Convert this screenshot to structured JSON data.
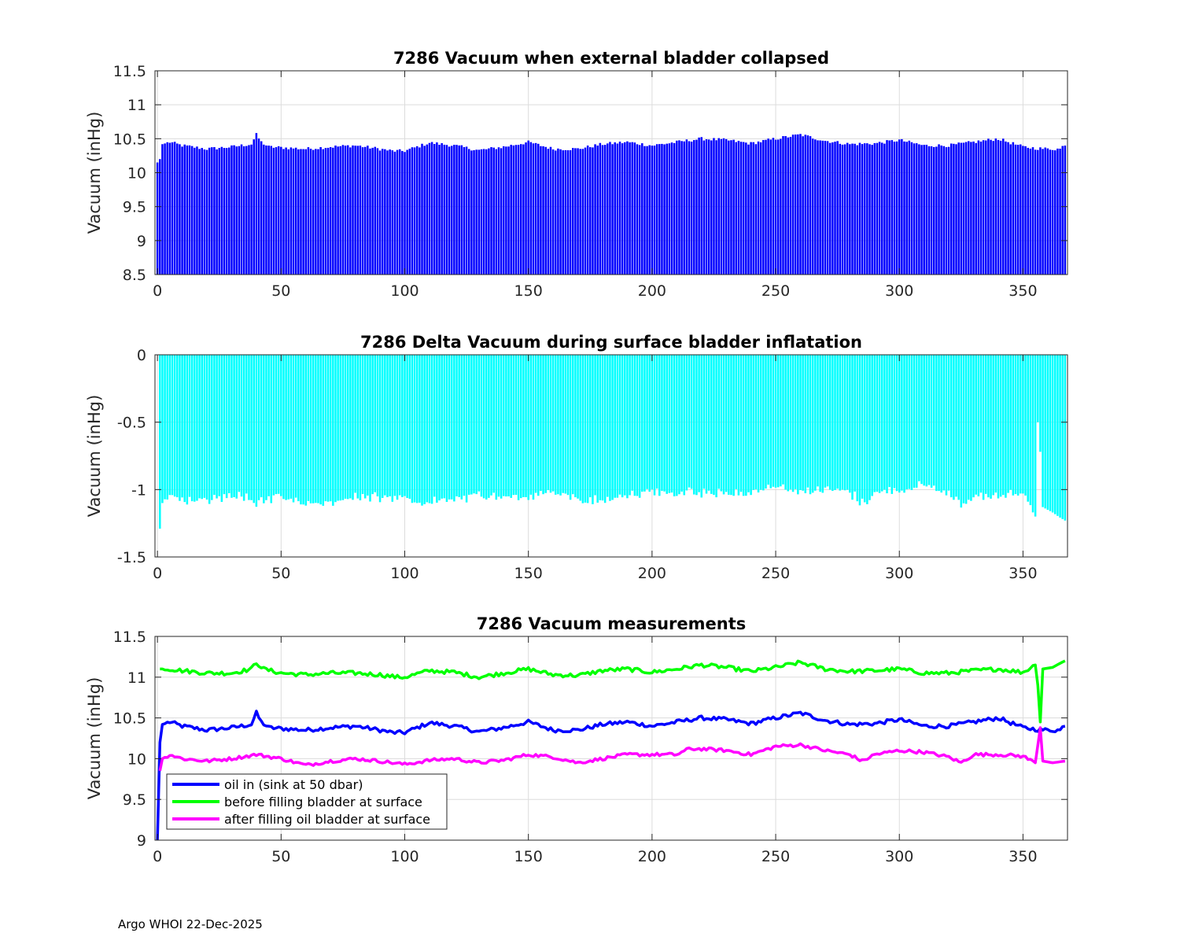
{
  "footer": "Argo WHOI 22-Dec-2025",
  "chart_data": [
    {
      "type": "bar",
      "title": "7286 Vacuum when external bladder collapsed",
      "xlabel": "",
      "ylabel": "Vacuum (inHg)",
      "xlim": [
        -1,
        368
      ],
      "ylim": [
        8.5,
        11.5
      ],
      "xticks": [
        0,
        50,
        100,
        150,
        200,
        250,
        300,
        350
      ],
      "yticks": [
        8.5,
        9,
        9.5,
        10,
        10.5,
        11,
        11.5
      ],
      "ytick_labels": [
        "8.5",
        "9",
        "9.5",
        "10",
        "10.5",
        "11",
        "11.5"
      ],
      "grid": true,
      "color": "#0000ff",
      "series_ref": "oil_in",
      "cycles": "0-367 (one bar per profile cycle)"
    },
    {
      "type": "bar",
      "title": "7286 Delta Vacuum during surface bladder inflatation",
      "xlabel": "",
      "ylabel": "Vacuum (inHg)",
      "xlim": [
        -1,
        368
      ],
      "ylim": [
        -1.5,
        0
      ],
      "xticks": [
        0,
        50,
        100,
        150,
        200,
        250,
        300,
        350
      ],
      "yticks": [
        -1.5,
        -1,
        -0.5,
        0
      ],
      "ytick_labels": [
        "-1.5",
        "-1",
        "-0.5",
        "0"
      ],
      "grid": true,
      "color": "#00ffff",
      "series_ref": "delta",
      "cycles": "0-367 (one bar per profile cycle)"
    },
    {
      "type": "line",
      "title": "7286 Vacuum measurements",
      "xlabel": "",
      "ylabel": "Vacuum (inHg)",
      "xlim": [
        -1,
        368
      ],
      "ylim": [
        9,
        11.5
      ],
      "xticks": [
        0,
        50,
        100,
        150,
        200,
        250,
        300,
        350
      ],
      "yticks": [
        9,
        9.5,
        10,
        10.5,
        11,
        11.5
      ],
      "ytick_labels": [
        "9",
        "9.5",
        "10",
        "10.5",
        "11",
        "11.5"
      ],
      "grid": true,
      "legend_position": "bottom-left",
      "series": [
        {
          "name": "oil in (sink at 50 dbar)",
          "color": "#0000ff",
          "anchors": [
            [
              0,
              9.0
            ],
            [
              1,
              10.2
            ],
            [
              2,
              10.42
            ],
            [
              5,
              10.45
            ],
            [
              10,
              10.4
            ],
            [
              20,
              10.35
            ],
            [
              30,
              10.38
            ],
            [
              38,
              10.42
            ],
            [
              40,
              10.56
            ],
            [
              42,
              10.45
            ],
            [
              45,
              10.38
            ],
            [
              60,
              10.35
            ],
            [
              70,
              10.38
            ],
            [
              80,
              10.4
            ],
            [
              90,
              10.35
            ],
            [
              95,
              10.32
            ],
            [
              100,
              10.32
            ],
            [
              105,
              10.38
            ],
            [
              110,
              10.44
            ],
            [
              120,
              10.4
            ],
            [
              130,
              10.33
            ],
            [
              140,
              10.38
            ],
            [
              150,
              10.45
            ],
            [
              160,
              10.35
            ],
            [
              170,
              10.35
            ],
            [
              180,
              10.42
            ],
            [
              190,
              10.45
            ],
            [
              200,
              10.4
            ],
            [
              210,
              10.45
            ],
            [
              220,
              10.5
            ],
            [
              230,
              10.48
            ],
            [
              240,
              10.43
            ],
            [
              250,
              10.5
            ],
            [
              260,
              10.56
            ],
            [
              270,
              10.47
            ],
            [
              280,
              10.42
            ],
            [
              290,
              10.43
            ],
            [
              300,
              10.48
            ],
            [
              310,
              10.4
            ],
            [
              320,
              10.4
            ],
            [
              330,
              10.45
            ],
            [
              340,
              10.5
            ],
            [
              350,
              10.38
            ],
            [
              355,
              10.36
            ],
            [
              360,
              10.35
            ],
            [
              365,
              10.35
            ],
            [
              367,
              10.42
            ]
          ]
        },
        {
          "name": "before filling bladder at surface",
          "color": "#00ff00",
          "anchors": [
            [
              1,
              11.1
            ],
            [
              5,
              11.1
            ],
            [
              10,
              11.08
            ],
            [
              20,
              11.05
            ],
            [
              30,
              11.05
            ],
            [
              38,
              11.1
            ],
            [
              40,
              11.18
            ],
            [
              43,
              11.1
            ],
            [
              50,
              11.05
            ],
            [
              60,
              11.03
            ],
            [
              70,
              11.05
            ],
            [
              80,
              11.05
            ],
            [
              90,
              11.03
            ],
            [
              97,
              11.0
            ],
            [
              100,
              11.0
            ],
            [
              110,
              11.08
            ],
            [
              120,
              11.06
            ],
            [
              130,
              11.0
            ],
            [
              140,
              11.05
            ],
            [
              150,
              11.1
            ],
            [
              160,
              11.03
            ],
            [
              170,
              11.02
            ],
            [
              180,
              11.08
            ],
            [
              190,
              11.1
            ],
            [
              200,
              11.06
            ],
            [
              210,
              11.1
            ],
            [
              220,
              11.15
            ],
            [
              230,
              11.12
            ],
            [
              240,
              11.07
            ],
            [
              250,
              11.12
            ],
            [
              260,
              11.18
            ],
            [
              270,
              11.1
            ],
            [
              280,
              11.07
            ],
            [
              290,
              11.08
            ],
            [
              300,
              11.1
            ],
            [
              310,
              11.05
            ],
            [
              320,
              11.05
            ],
            [
              330,
              11.08
            ],
            [
              340,
              11.1
            ],
            [
              350,
              11.06
            ],
            [
              355,
              11.15
            ],
            [
              356,
              10.9
            ],
            [
              357,
              10.45
            ],
            [
              358,
              11.1
            ],
            [
              362,
              11.12
            ],
            [
              365,
              11.17
            ],
            [
              367,
              11.2
            ]
          ]
        },
        {
          "name": "after filling oil bladder at surface",
          "color": "#ff00ff",
          "anchors": [
            [
              1,
              9.85
            ],
            [
              2,
              10.0
            ],
            [
              5,
              10.05
            ],
            [
              10,
              10.0
            ],
            [
              20,
              9.97
            ],
            [
              30,
              10.0
            ],
            [
              40,
              10.05
            ],
            [
              50,
              10.0
            ],
            [
              60,
              9.92
            ],
            [
              70,
              9.97
            ],
            [
              80,
              10.0
            ],
            [
              90,
              9.97
            ],
            [
              100,
              9.93
            ],
            [
              110,
              9.98
            ],
            [
              120,
              10.0
            ],
            [
              130,
              9.95
            ],
            [
              140,
              9.98
            ],
            [
              150,
              10.05
            ],
            [
              160,
              10.02
            ],
            [
              170,
              9.95
            ],
            [
              180,
              10.0
            ],
            [
              190,
              10.05
            ],
            [
              200,
              10.05
            ],
            [
              210,
              10.05
            ],
            [
              215,
              10.12
            ],
            [
              220,
              10.12
            ],
            [
              230,
              10.1
            ],
            [
              240,
              10.05
            ],
            [
              250,
              10.15
            ],
            [
              260,
              10.17
            ],
            [
              270,
              10.1
            ],
            [
              280,
              10.05
            ],
            [
              285,
              9.97
            ],
            [
              290,
              10.05
            ],
            [
              300,
              10.1
            ],
            [
              310,
              10.08
            ],
            [
              320,
              10.02
            ],
            [
              325,
              9.95
            ],
            [
              330,
              10.05
            ],
            [
              340,
              10.05
            ],
            [
              350,
              10.03
            ],
            [
              355,
              9.95
            ],
            [
              357,
              10.38
            ],
            [
              358,
              9.97
            ],
            [
              362,
              9.95
            ],
            [
              367,
              9.97
            ]
          ]
        }
      ]
    }
  ]
}
